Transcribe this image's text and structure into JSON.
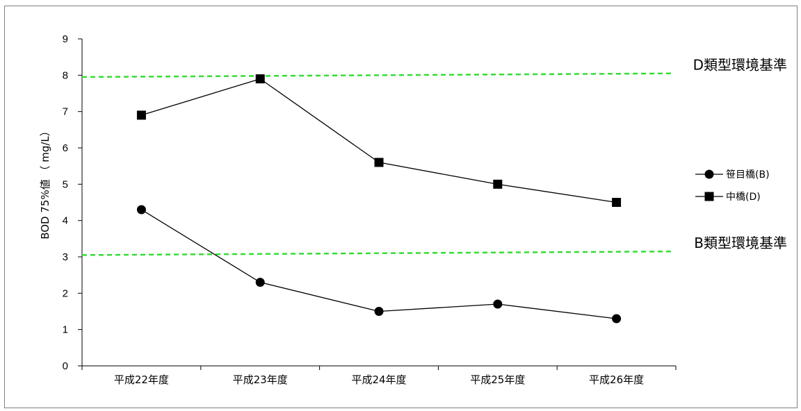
{
  "chart_data": {
    "type": "line",
    "categories": [
      "平成22年度",
      "平成23年度",
      "平成24年度",
      "平成25年度",
      "平成26年度"
    ],
    "series": [
      {
        "name": "笹目橋(B)",
        "marker": "circle",
        "color": "#000000",
        "values": [
          4.3,
          2.3,
          1.5,
          1.7,
          1.3
        ]
      },
      {
        "name": "中橋(D)",
        "marker": "square",
        "color": "#000000",
        "values": [
          6.9,
          7.9,
          5.6,
          5.0,
          4.5
        ]
      }
    ],
    "ylabel": "BOD 75%値 （ mg/L）",
    "ylim": [
      0,
      9
    ],
    "yticks": [
      "0",
      "1",
      "2",
      "3",
      "4",
      "5",
      "6",
      "7",
      "8",
      "9"
    ],
    "reference_lines": [
      {
        "label": "D類型環境基準",
        "from": 7.95,
        "to": 8.05,
        "color": "#33dd33"
      },
      {
        "label": "B類型環境基準",
        "from": 3.05,
        "to": 3.15,
        "color": "#33dd33"
      }
    ],
    "grid": false,
    "legend_position": "right"
  }
}
